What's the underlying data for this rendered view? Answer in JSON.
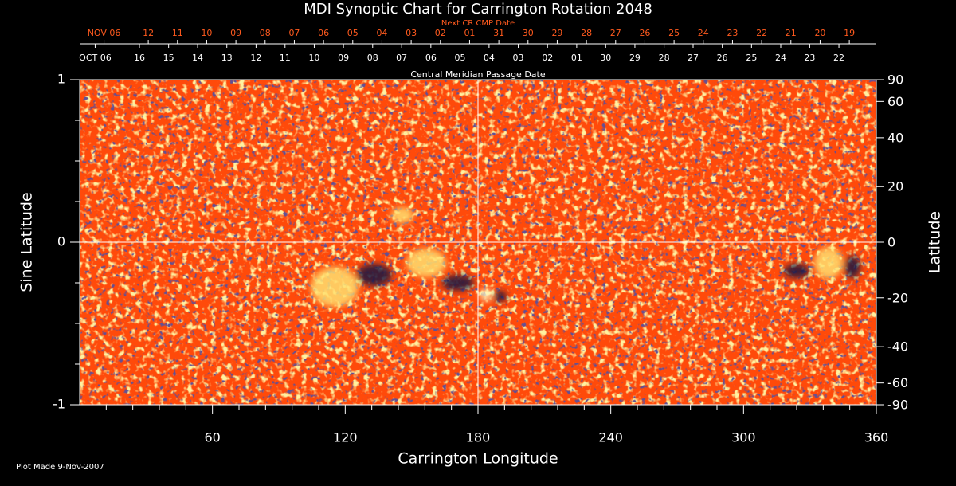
{
  "chart_data": {
    "type": "map",
    "title": "MDI Synoptic Chart for Carrington Rotation 2048",
    "x_label": "Carrington Longitude",
    "y_label": "Sine Latitude",
    "y2_label": "Latitude",
    "xlim": [
      0,
      360
    ],
    "xticks": [
      60,
      120,
      180,
      240,
      300,
      360
    ],
    "ylim": [
      -1,
      1
    ],
    "yticks": [
      -1,
      0,
      1
    ],
    "y2lim": [
      -90,
      90
    ],
    "y2ticks": [
      90,
      60,
      40,
      20,
      0,
      -20,
      -40,
      -60,
      -90
    ],
    "y2_scale": "sine",
    "date_axis": {
      "label": "Central Meridian Passage Date",
      "labels": [
        "OCT 06",
        "16",
        "15",
        "14",
        "13",
        "12",
        "11",
        "10",
        "09",
        "08",
        "07",
        "06",
        "05",
        "04",
        "03",
        "02",
        "01",
        "30",
        "29",
        "28",
        "27",
        "26",
        "25",
        "24",
        "23",
        "22"
      ],
      "x": [
        7,
        27,
        40.2,
        53.3,
        66.5,
        79.7,
        92.8,
        106,
        119.2,
        132.4,
        145.5,
        158.7,
        171.9,
        185,
        198.2,
        211.4,
        224.6,
        237.7,
        250.9,
        264.1,
        277.2,
        290.4,
        303.6,
        316.8,
        329.9,
        343.1
      ]
    },
    "next_date_axis": {
      "label": "Next CR CMP Date",
      "color": "#ff5a1e",
      "labels": [
        "NOV 06",
        "12",
        "11",
        "10",
        "09",
        "08",
        "07",
        "06",
        "05",
        "04",
        "03",
        "02",
        "01",
        "31",
        "30",
        "29",
        "28",
        "27",
        "26",
        "25",
        "24",
        "23",
        "22",
        "21",
        "20",
        "19"
      ],
      "x": [
        11,
        31,
        44.2,
        57.4,
        70.6,
        83.8,
        97,
        110.2,
        123.4,
        136.6,
        149.8,
        163,
        176.2,
        189.4,
        202.6,
        215.8,
        229,
        242.2,
        255.4,
        268.6,
        281.8,
        295,
        308.2,
        321.4,
        334.6,
        347.8
      ]
    }
  },
  "footer": {
    "text": "Plot Made  9-Nov-2007"
  }
}
